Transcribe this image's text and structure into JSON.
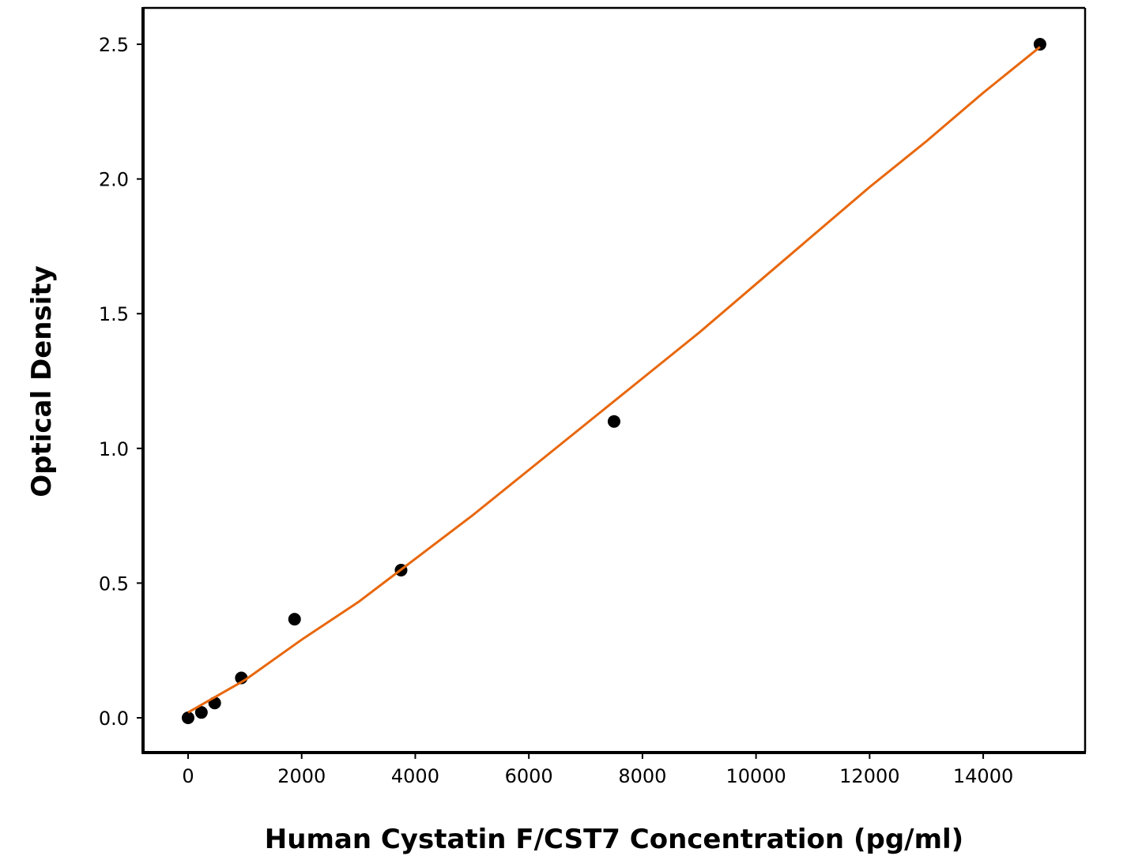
{
  "chart_data": {
    "type": "scatter",
    "x_label": "Human Cystatin F/CST7 Concentration (pg/ml)",
    "y_label": "Optical Density",
    "series": [
      {
        "type": "scatter",
        "color": "#000000",
        "x": [
          0,
          234.375,
          468.75,
          937.5,
          1875,
          3750,
          7500,
          15000
        ],
        "values": [
          0.0,
          0.02,
          0.055,
          0.148,
          0.366,
          0.548,
          1.1,
          2.5
        ]
      },
      {
        "type": "line",
        "color": "#e8670c",
        "x": [
          0,
          1000,
          2000,
          3000,
          4000,
          5000,
          6000,
          7000,
          8000,
          9000,
          10000,
          11000,
          12000,
          13000,
          14000,
          15000
        ],
        "values": [
          0.02,
          0.14,
          0.29,
          0.43,
          0.59,
          0.75,
          0.92,
          1.09,
          1.26,
          1.43,
          1.61,
          1.79,
          1.97,
          2.14,
          2.32,
          2.49
        ]
      }
    ],
    "xlim": [
      -793,
      15794
    ],
    "ylim": [
      -0.129,
      2.635
    ],
    "xticks": [
      0,
      2000,
      4000,
      6000,
      8000,
      10000,
      12000,
      14000
    ],
    "yticks": [
      {
        "value": 0,
        "label": "0.0"
      },
      0.5,
      {
        "value": 1,
        "label": "1.0"
      },
      1.5,
      {
        "value": 2,
        "label": "2.0"
      },
      2.5
    ]
  }
}
